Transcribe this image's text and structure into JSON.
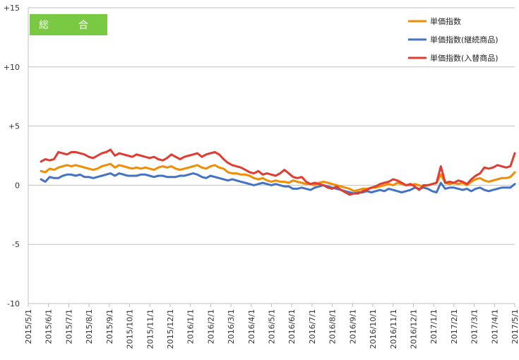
{
  "chart_data": {
    "type": "line",
    "title": "総　合",
    "y_ticks": [
      "+15",
      "+10",
      "+5",
      "0",
      "-5",
      "-10"
    ],
    "ylim": [
      -10,
      15
    ],
    "x_ticks": [
      "2015/5/1",
      "2015/6/1",
      "2015/7/1",
      "2015/8/1",
      "2015/9/1",
      "2015/10/1",
      "2015/11/1",
      "2015/12/1",
      "2016/1/1",
      "2016/2/1",
      "2016/3/1",
      "2016/4/1",
      "2016/5/1",
      "2016/6/1",
      "2016/7/1",
      "2016/8/1",
      "2016/9/1",
      "2016/10/1",
      "2016/11/1",
      "2016/12/1",
      "2017/1/1",
      "2017/2/1",
      "2017/3/1",
      "2017/4/1",
      "2017/5/1"
    ],
    "grid": "horizontal",
    "legend_position": "top-right",
    "series": [
      {
        "name": "単価指数",
        "color": "#f28c00",
        "values": [
          1.2,
          1.1,
          1.4,
          1.3,
          1.5,
          1.6,
          1.7,
          1.6,
          1.7,
          1.6,
          1.5,
          1.4,
          1.3,
          1.4,
          1.6,
          1.7,
          1.8,
          1.5,
          1.7,
          1.6,
          1.5,
          1.4,
          1.5,
          1.4,
          1.5,
          1.4,
          1.3,
          1.5,
          1.6,
          1.5,
          1.6,
          1.4,
          1.3,
          1.4,
          1.5,
          1.6,
          1.7,
          1.5,
          1.4,
          1.6,
          1.7,
          1.5,
          1.4,
          1.1,
          1.0,
          1.0,
          0.9,
          0.9,
          0.8,
          0.6,
          0.5,
          0.6,
          0.4,
          0.3,
          0.4,
          0.3,
          0.3,
          0.2,
          0.4,
          0.3,
          0.2,
          0.1,
          0.1,
          0.0,
          0.2,
          0.3,
          0.2,
          0.1,
          0.0,
          -0.1,
          -0.2,
          -0.3,
          -0.5,
          -0.4,
          -0.3,
          -0.3,
          -0.2,
          -0.2,
          -0.1,
          0.0,
          0.1,
          0.0,
          0.2,
          0.1,
          0.0,
          0.0,
          0.1,
          0.0,
          -0.1,
          0.0,
          0.1,
          0.2,
          0.9,
          0.2,
          0.1,
          0.2,
          0.1,
          0.2,
          0.0,
          0.3,
          0.5,
          0.6,
          0.4,
          0.3,
          0.4,
          0.5,
          0.6,
          0.6,
          0.7,
          1.1
        ]
      },
      {
        "name": "単価指数(継続商品)",
        "color": "#4472c4",
        "values": [
          0.5,
          0.3,
          0.7,
          0.6,
          0.6,
          0.8,
          0.9,
          0.9,
          0.8,
          0.9,
          0.7,
          0.7,
          0.6,
          0.7,
          0.8,
          0.9,
          1.0,
          0.8,
          1.0,
          0.9,
          0.8,
          0.8,
          0.8,
          0.9,
          0.9,
          0.8,
          0.7,
          0.8,
          0.8,
          0.7,
          0.7,
          0.7,
          0.8,
          0.8,
          0.9,
          1.0,
          0.9,
          0.7,
          0.6,
          0.8,
          0.7,
          0.6,
          0.5,
          0.4,
          0.5,
          0.4,
          0.3,
          0.2,
          0.1,
          0.0,
          0.1,
          0.2,
          0.1,
          0.0,
          0.1,
          0.0,
          -0.1,
          -0.1,
          -0.3,
          -0.3,
          -0.2,
          -0.3,
          -0.4,
          -0.2,
          -0.1,
          0.0,
          -0.1,
          -0.2,
          -0.3,
          -0.4,
          -0.5,
          -0.6,
          -0.7,
          -0.6,
          -0.6,
          -0.5,
          -0.6,
          -0.5,
          -0.4,
          -0.5,
          -0.3,
          -0.4,
          -0.5,
          -0.6,
          -0.5,
          -0.4,
          -0.2,
          -0.3,
          -0.2,
          -0.3,
          -0.5,
          -0.6,
          0.2,
          -0.3,
          -0.2,
          -0.2,
          -0.3,
          -0.4,
          -0.3,
          -0.5,
          -0.3,
          -0.2,
          -0.4,
          -0.5,
          -0.4,
          -0.3,
          -0.2,
          -0.2,
          -0.2,
          0.1
        ]
      },
      {
        "name": "単価指数(入替商品)",
        "color": "#e03c31",
        "values": [
          2.0,
          2.2,
          2.1,
          2.2,
          2.8,
          2.7,
          2.6,
          2.8,
          2.8,
          2.7,
          2.6,
          2.4,
          2.3,
          2.5,
          2.7,
          2.8,
          3.0,
          2.5,
          2.7,
          2.6,
          2.5,
          2.4,
          2.6,
          2.5,
          2.4,
          2.3,
          2.4,
          2.2,
          2.1,
          2.3,
          2.6,
          2.4,
          2.2,
          2.4,
          2.5,
          2.6,
          2.7,
          2.4,
          2.6,
          2.7,
          2.8,
          2.6,
          2.2,
          1.9,
          1.7,
          1.6,
          1.5,
          1.3,
          1.1,
          1.0,
          1.2,
          0.9,
          1.0,
          0.9,
          0.8,
          1.0,
          1.3,
          1.0,
          0.7,
          0.6,
          0.7,
          0.3,
          0.1,
          0.2,
          0.1,
          0.0,
          -0.2,
          -0.3,
          -0.1,
          -0.4,
          -0.6,
          -0.8,
          -0.7,
          -0.7,
          -0.5,
          -0.4,
          -0.2,
          -0.1,
          0.1,
          0.2,
          0.3,
          0.5,
          0.4,
          0.2,
          0.0,
          0.1,
          -0.1,
          -0.4,
          0.0,
          0.0,
          0.1,
          0.2,
          1.6,
          0.2,
          0.3,
          0.2,
          0.4,
          0.3,
          0.1,
          0.5,
          0.8,
          1.0,
          1.5,
          1.4,
          1.5,
          1.7,
          1.6,
          1.5,
          1.6,
          2.7
        ]
      }
    ]
  }
}
